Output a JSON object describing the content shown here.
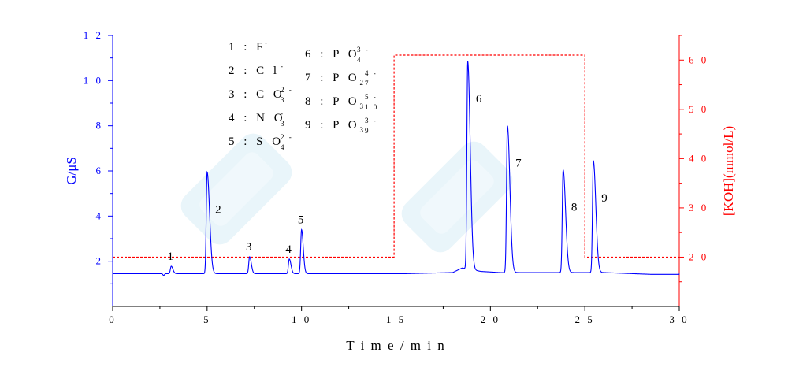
{
  "chart_data": {
    "type": "line",
    "title": "",
    "xlabel": "T i m e / m i n",
    "ylabel_left": "G/μS",
    "ylabel_right": "[KOH](mmol/L)",
    "xlim": [
      0,
      30
    ],
    "ylim_left": [
      0,
      12
    ],
    "ylim_right": [
      10,
      65
    ],
    "x_ticks": [
      0,
      5,
      10,
      15,
      20,
      25,
      30
    ],
    "x_tick_labels": [
      "0",
      "5",
      "1 0",
      "1 5",
      "2 0",
      "2 5",
      "3 0"
    ],
    "y_left_ticks": [
      2,
      4,
      6,
      8,
      10,
      12
    ],
    "y_left_tick_labels": [
      "2",
      "4",
      "6",
      "8",
      "1 0",
      "1 2"
    ],
    "y_right_ticks": [
      20,
      30,
      40,
      50,
      60
    ],
    "y_right_tick_labels": [
      "2 0",
      "3 0",
      "4 0",
      "5 0",
      "6 0"
    ],
    "colors": {
      "conductivity": "#0000ff",
      "koh": "#ff0000",
      "left_axis": "#0000ff",
      "right_axis": "#ff0000",
      "watermark": "#bfe3f2"
    },
    "baseline": 1.45,
    "baseline_points": [
      [
        0,
        1.45
      ],
      [
        15.5,
        1.45
      ],
      [
        18.0,
        1.5
      ],
      [
        18.5,
        1.7
      ],
      [
        19.5,
        1.55
      ],
      [
        20.5,
        1.5
      ],
      [
        26.0,
        1.5
      ],
      [
        28.5,
        1.42
      ],
      [
        30,
        1.42
      ]
    ],
    "peaks": [
      {
        "label": "1",
        "time": 3.1,
        "height": 1.78
      },
      {
        "label": "2",
        "time": 5.0,
        "height": 5.95
      },
      {
        "label": "3",
        "time": 7.25,
        "height": 2.2
      },
      {
        "label": "4",
        "time": 9.35,
        "height": 2.1
      },
      {
        "label": "5",
        "time": 10.0,
        "height": 3.4
      },
      {
        "label": "6",
        "time": 18.8,
        "height": 10.85
      },
      {
        "label": "7",
        "time": 20.9,
        "height": 8.0
      },
      {
        "label": "8",
        "time": 23.85,
        "height": 6.05
      },
      {
        "label": "9",
        "time": 25.45,
        "height": 6.45
      }
    ],
    "koh_gradient": [
      [
        0,
        20
      ],
      [
        14.9,
        20
      ],
      [
        14.9,
        61
      ],
      [
        25.0,
        61
      ],
      [
        25.0,
        20
      ],
      [
        30,
        20
      ]
    ],
    "legend": [
      {
        "num": "1",
        "main": ": F",
        "sup": "-",
        "sub": ""
      },
      {
        "num": "2",
        "main": ": C l",
        "sup": "-",
        "sub": ""
      },
      {
        "num": "3",
        "main": ": C O",
        "sup": "2 -",
        "sub": "3"
      },
      {
        "num": "4",
        "main": ": N O",
        "sup": "-",
        "sub": "3"
      },
      {
        "num": "5",
        "main": ": S O",
        "sup": "2 -",
        "sub": "4"
      },
      {
        "num": "6",
        "main": ": P O",
        "sup": "3 -",
        "sub": "4"
      },
      {
        "num": "7",
        "main": ": P  O",
        "sup": "4 -",
        "sub": "7",
        "sub2": "2"
      },
      {
        "num": "8",
        "main": ": P  O",
        "sup": "5 -",
        "sub": "1 0",
        "sub2": "3"
      },
      {
        "num": "9",
        "main": ": P  O",
        "sup": "3 -",
        "sub": "9",
        "sub2": "3"
      }
    ],
    "grid": false,
    "legend_position": "top-left"
  }
}
